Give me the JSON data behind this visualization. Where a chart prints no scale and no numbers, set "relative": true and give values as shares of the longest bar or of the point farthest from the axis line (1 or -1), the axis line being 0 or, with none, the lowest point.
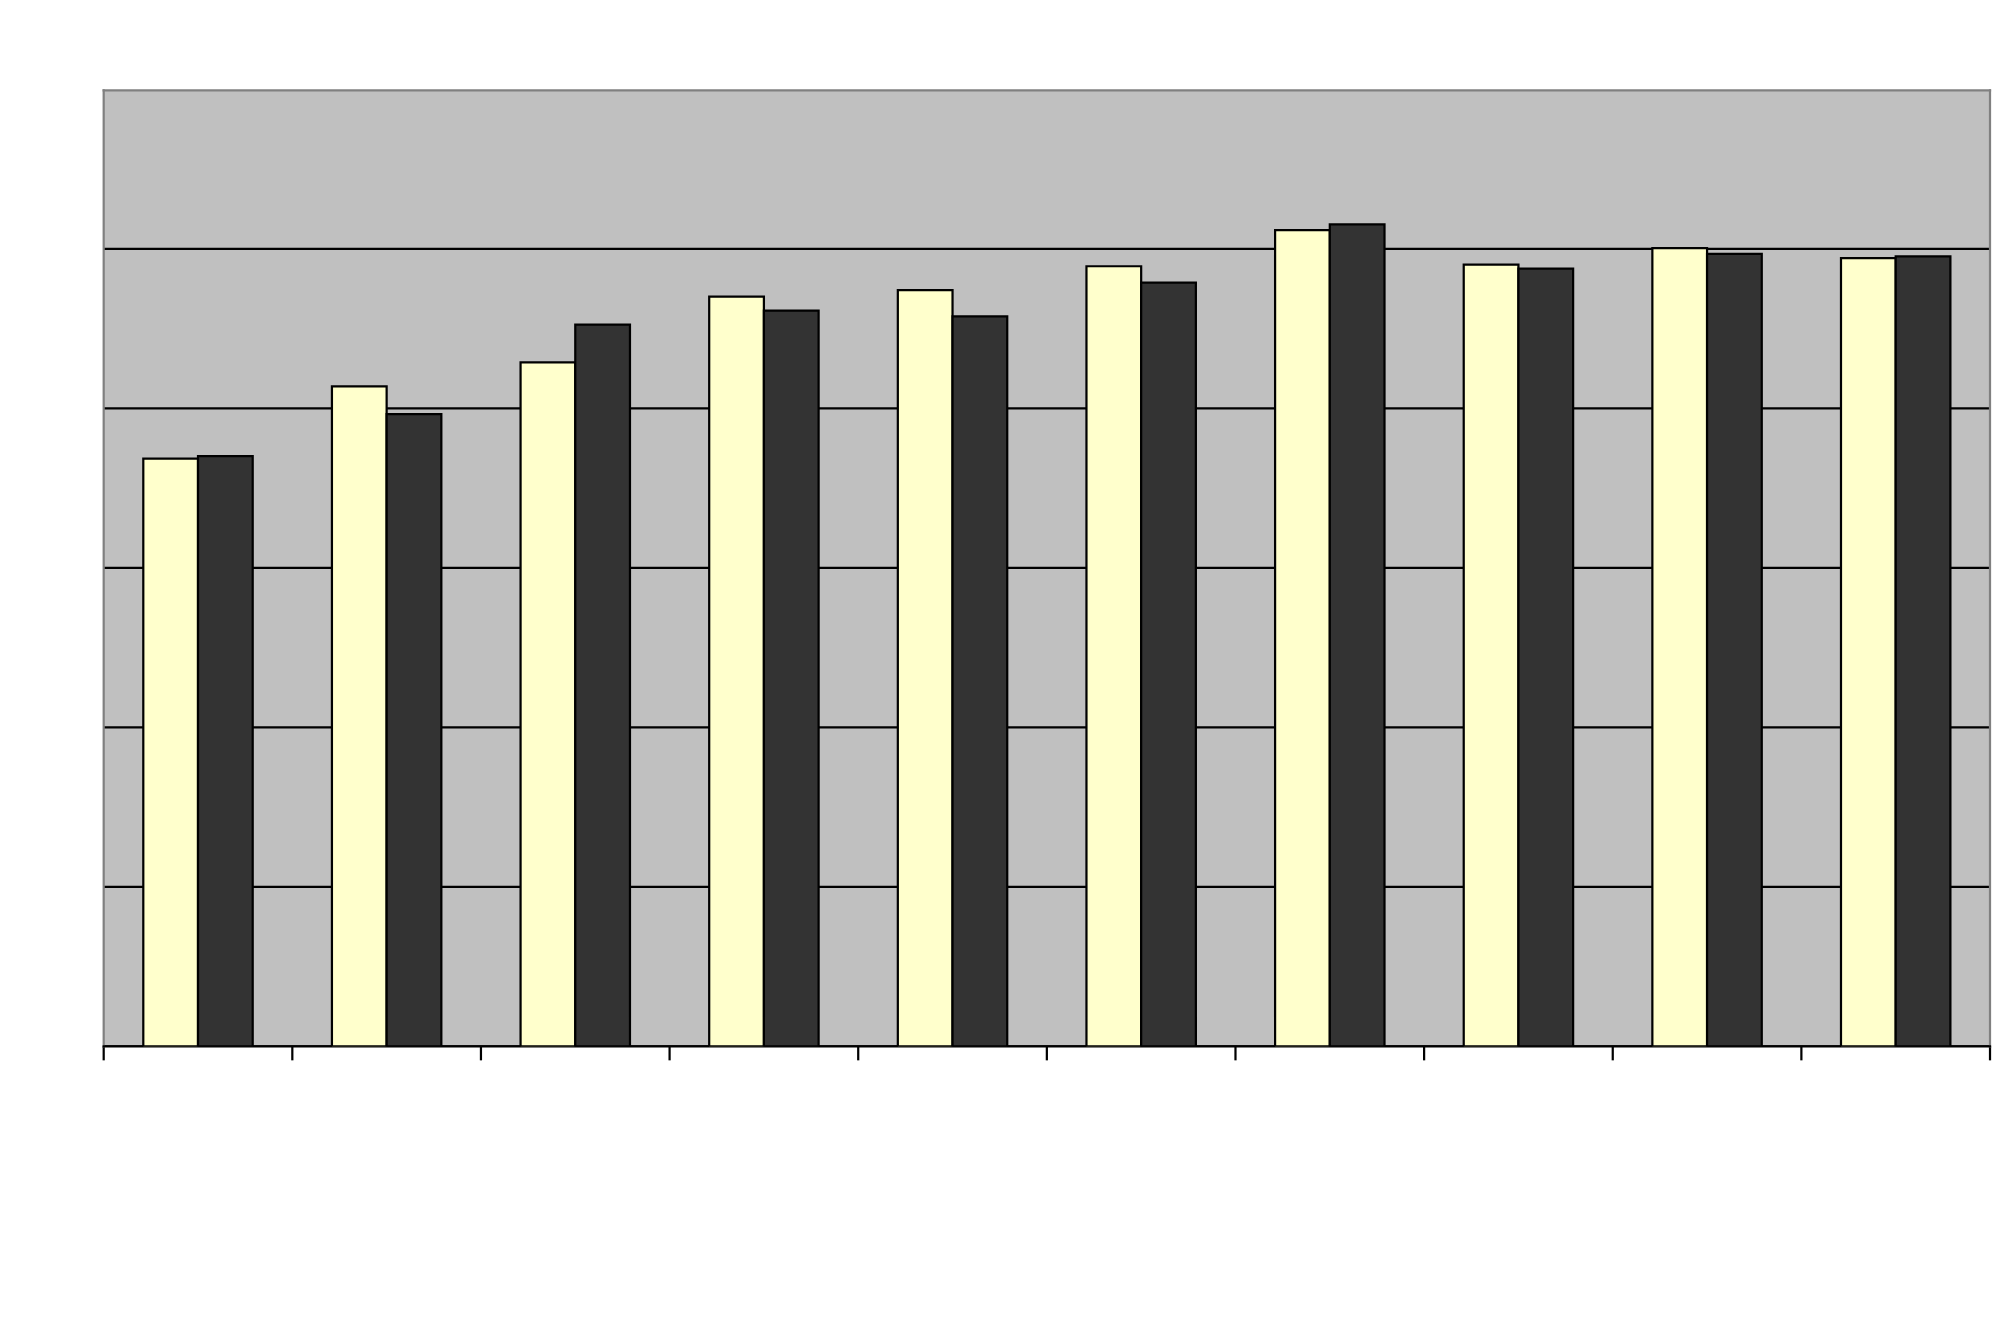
{
  "chart_data": {
    "type": "bar",
    "relative": true,
    "grid": "y",
    "legend": false,
    "categories": [
      null,
      null,
      null,
      null,
      null,
      null,
      null,
      null,
      null,
      null
    ],
    "series": [
      {
        "color": "#ffffcc",
        "values": [
          0.715,
          0.803,
          0.832,
          0.912,
          0.92,
          0.949,
          0.993,
          0.951,
          0.971,
          0.959
        ]
      },
      {
        "color": "#333333",
        "values": [
          0.718,
          0.769,
          0.878,
          0.895,
          0.888,
          0.929,
          1,
          0.946,
          0.964,
          0.961
        ]
      }
    ]
  }
}
